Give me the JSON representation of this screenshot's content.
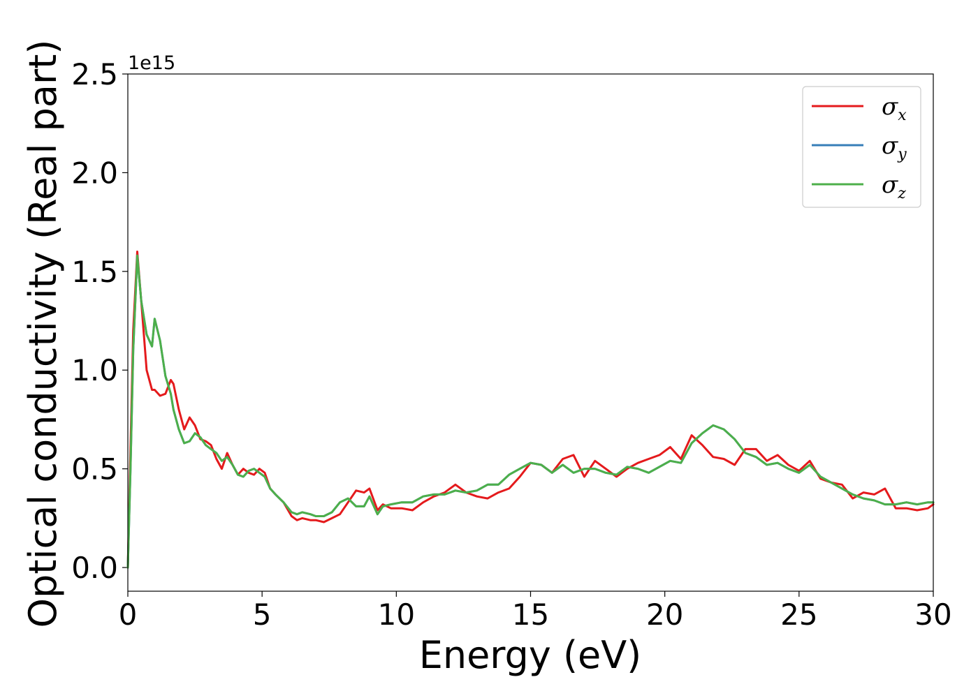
{
  "chart_data": {
    "type": "line",
    "title": "",
    "xlabel": "Energy (eV)",
    "ylabel": "Optical conductivity (Real part)",
    "y_offset_label": "1e15",
    "xlim": [
      0,
      30
    ],
    "ylim": [
      -0.12,
      2.5
    ],
    "xticks": [
      "0",
      "5",
      "10",
      "15",
      "20",
      "25",
      "30"
    ],
    "xtick_values": [
      0,
      5,
      10,
      15,
      20,
      25,
      30
    ],
    "yticks": [
      "0.0",
      "0.5",
      "1.0",
      "1.5",
      "2.0",
      "2.5"
    ],
    "ytick_values": [
      0,
      0.5,
      1.0,
      1.5,
      2.0,
      2.5
    ],
    "grid": false,
    "legend_position": "top-right",
    "x": [
      0,
      0.1,
      0.2,
      0.35,
      0.5,
      0.7,
      0.9,
      1.0,
      1.2,
      1.4,
      1.6,
      1.7,
      1.9,
      2.1,
      2.3,
      2.5,
      2.7,
      2.9,
      3.1,
      3.3,
      3.5,
      3.7,
      3.9,
      4.1,
      4.3,
      4.5,
      4.7,
      4.9,
      5.1,
      5.3,
      5.5,
      5.8,
      6.1,
      6.3,
      6.5,
      6.8,
      7.0,
      7.3,
      7.6,
      7.9,
      8.2,
      8.5,
      8.8,
      9.0,
      9.3,
      9.5,
      9.8,
      10.2,
      10.6,
      11.0,
      11.4,
      11.8,
      12.2,
      12.6,
      13.0,
      13.4,
      13.8,
      14.2,
      14.6,
      15.0,
      15.4,
      15.8,
      16.2,
      16.6,
      17.0,
      17.4,
      17.8,
      18.2,
      18.6,
      19.0,
      19.4,
      19.8,
      20.2,
      20.6,
      21.0,
      21.4,
      21.8,
      22.2,
      22.6,
      23.0,
      23.4,
      23.8,
      24.2,
      24.6,
      25.0,
      25.4,
      25.8,
      26.2,
      26.6,
      27.0,
      27.4,
      27.8,
      28.2,
      28.6,
      29.0,
      29.4,
      29.8,
      30.0
    ],
    "series": [
      {
        "name": "σ",
        "subscript": "x",
        "color": "#e41a1c",
        "values": [
          0.0,
          0.6,
          1.2,
          1.6,
          1.35,
          1.0,
          0.9,
          0.9,
          0.87,
          0.88,
          0.95,
          0.93,
          0.8,
          0.7,
          0.76,
          0.72,
          0.65,
          0.64,
          0.62,
          0.55,
          0.5,
          0.58,
          0.52,
          0.47,
          0.5,
          0.48,
          0.47,
          0.5,
          0.48,
          0.4,
          0.37,
          0.33,
          0.26,
          0.24,
          0.25,
          0.24,
          0.24,
          0.23,
          0.25,
          0.27,
          0.33,
          0.39,
          0.38,
          0.4,
          0.29,
          0.32,
          0.3,
          0.3,
          0.29,
          0.33,
          0.36,
          0.38,
          0.42,
          0.38,
          0.36,
          0.35,
          0.38,
          0.4,
          0.46,
          0.53,
          0.52,
          0.48,
          0.55,
          0.57,
          0.46,
          0.54,
          0.5,
          0.46,
          0.5,
          0.53,
          0.55,
          0.57,
          0.61,
          0.55,
          0.67,
          0.62,
          0.56,
          0.55,
          0.52,
          0.6,
          0.6,
          0.54,
          0.57,
          0.52,
          0.49,
          0.54,
          0.45,
          0.43,
          0.42,
          0.35,
          0.38,
          0.37,
          0.4,
          0.3,
          0.3,
          0.29,
          0.3,
          0.32
        ]
      },
      {
        "name": "σ",
        "subscript": "y",
        "color": "#377eb8",
        "values": [
          0.0,
          0.5,
          1.1,
          1.58,
          1.35,
          1.18,
          1.12,
          1.26,
          1.15,
          0.97,
          0.88,
          0.8,
          0.7,
          0.63,
          0.64,
          0.68,
          0.66,
          0.62,
          0.6,
          0.58,
          0.54,
          0.56,
          0.52,
          0.47,
          0.46,
          0.49,
          0.5,
          0.48,
          0.46,
          0.4,
          0.37,
          0.33,
          0.28,
          0.27,
          0.28,
          0.27,
          0.26,
          0.26,
          0.28,
          0.33,
          0.35,
          0.31,
          0.31,
          0.36,
          0.27,
          0.31,
          0.32,
          0.33,
          0.33,
          0.36,
          0.37,
          0.37,
          0.39,
          0.38,
          0.39,
          0.42,
          0.42,
          0.47,
          0.5,
          0.53,
          0.52,
          0.48,
          0.52,
          0.48,
          0.5,
          0.5,
          0.48,
          0.47,
          0.51,
          0.5,
          0.48,
          0.51,
          0.54,
          0.53,
          0.63,
          0.68,
          0.72,
          0.7,
          0.65,
          0.58,
          0.56,
          0.52,
          0.53,
          0.5,
          0.48,
          0.52,
          0.46,
          0.43,
          0.4,
          0.37,
          0.35,
          0.34,
          0.32,
          0.32,
          0.33,
          0.32,
          0.33,
          0.33
        ]
      },
      {
        "name": "σ",
        "subscript": "z",
        "color": "#4daf4a",
        "values": [
          0.0,
          0.5,
          1.1,
          1.58,
          1.35,
          1.18,
          1.12,
          1.26,
          1.15,
          0.97,
          0.88,
          0.8,
          0.7,
          0.63,
          0.64,
          0.68,
          0.66,
          0.62,
          0.6,
          0.58,
          0.54,
          0.56,
          0.52,
          0.47,
          0.46,
          0.49,
          0.5,
          0.48,
          0.46,
          0.4,
          0.37,
          0.33,
          0.28,
          0.27,
          0.28,
          0.27,
          0.26,
          0.26,
          0.28,
          0.33,
          0.35,
          0.31,
          0.31,
          0.36,
          0.27,
          0.31,
          0.32,
          0.33,
          0.33,
          0.36,
          0.37,
          0.37,
          0.39,
          0.38,
          0.39,
          0.42,
          0.42,
          0.47,
          0.5,
          0.53,
          0.52,
          0.48,
          0.52,
          0.48,
          0.5,
          0.5,
          0.48,
          0.47,
          0.51,
          0.5,
          0.48,
          0.51,
          0.54,
          0.53,
          0.63,
          0.68,
          0.72,
          0.7,
          0.65,
          0.58,
          0.56,
          0.52,
          0.53,
          0.5,
          0.48,
          0.52,
          0.46,
          0.43,
          0.4,
          0.37,
          0.35,
          0.34,
          0.32,
          0.32,
          0.33,
          0.32,
          0.33,
          0.33
        ]
      }
    ]
  }
}
